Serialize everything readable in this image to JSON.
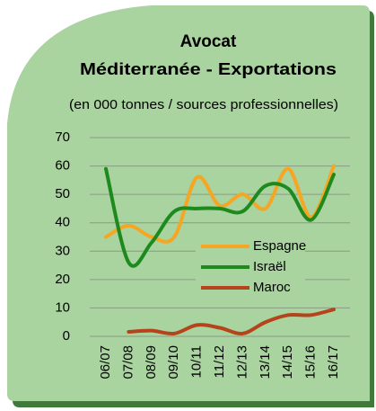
{
  "chart_data": {
    "type": "line",
    "title": "Avocat",
    "subtitle": "Méditerranée - Exportations",
    "note": "(en 000 tonnes / sources professionnelles)",
    "categories": [
      "06/07",
      "07/08",
      "08/09",
      "09/10",
      "10/11",
      "11/12",
      "12/13",
      "13/14",
      "14/15",
      "15/16",
      "16/17"
    ],
    "series": [
      {
        "name": "Espagne",
        "color": "#f5a623",
        "values": [
          35,
          39,
          35,
          35,
          56,
          46,
          50,
          45,
          59,
          42,
          60
        ]
      },
      {
        "name": "Israël",
        "color": "#1e8a1e",
        "values": [
          59,
          26,
          33,
          44,
          45,
          45,
          44,
          53,
          52,
          41,
          57
        ]
      },
      {
        "name": "Maroc",
        "color": "#b5441c",
        "values": [
          null,
          1.6,
          2,
          1,
          4,
          3,
          1,
          5,
          7.5,
          7.5,
          9.5
        ]
      }
    ],
    "ylim": [
      0,
      70
    ],
    "yticks": [
      0,
      10,
      20,
      30,
      40,
      50,
      60,
      70
    ],
    "grid": true,
    "smooth": true
  }
}
